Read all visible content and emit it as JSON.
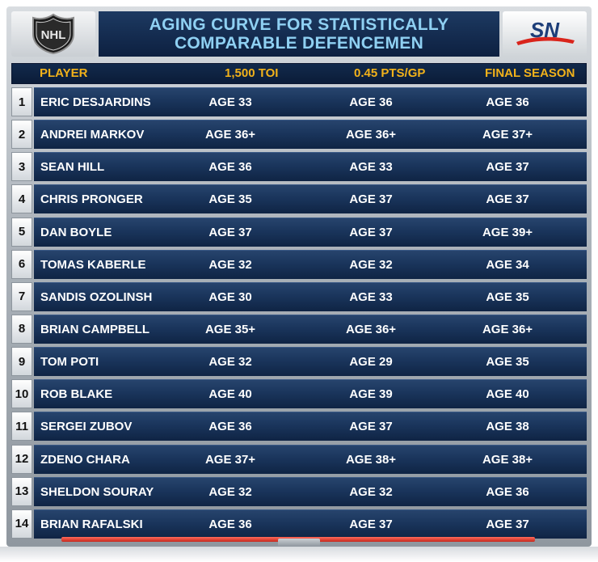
{
  "header": {
    "title_line1": "AGING CURVE FOR STATISTICALLY",
    "title_line2": "COMPARABLE DEFENCEMEN",
    "left_logo": "NHL",
    "right_logo": "SN"
  },
  "columns": [
    "PLAYER",
    "1,500 TOI",
    "0.45 PTS/GP",
    "FINAL SEASON"
  ],
  "rows": [
    {
      "rank": "1",
      "player": "ERIC DESJARDINS",
      "toi": "AGE 33",
      "ptsgp": "AGE 36",
      "final": "AGE 36"
    },
    {
      "rank": "2",
      "player": "ANDREI MARKOV",
      "toi": "AGE 36+",
      "ptsgp": "AGE 36+",
      "final": "AGE 37+"
    },
    {
      "rank": "3",
      "player": "SEAN HILL",
      "toi": "AGE 36",
      "ptsgp": "AGE 33",
      "final": "AGE 37"
    },
    {
      "rank": "4",
      "player": "CHRIS PRONGER",
      "toi": "AGE 35",
      "ptsgp": "AGE 37",
      "final": "AGE 37"
    },
    {
      "rank": "5",
      "player": "DAN BOYLE",
      "toi": "AGE 37",
      "ptsgp": "AGE 37",
      "final": "AGE 39+"
    },
    {
      "rank": "6",
      "player": "TOMAS KABERLE",
      "toi": "AGE 32",
      "ptsgp": "AGE 32",
      "final": "AGE 34"
    },
    {
      "rank": "7",
      "player": "SANDIS OZOLINSH",
      "toi": "AGE 30",
      "ptsgp": "AGE 33",
      "final": "AGE 35"
    },
    {
      "rank": "8",
      "player": "BRIAN CAMPBELL",
      "toi": "AGE 35+",
      "ptsgp": "AGE 36+",
      "final": "AGE 36+"
    },
    {
      "rank": "9",
      "player": "TOM POTI",
      "toi": "AGE 32",
      "ptsgp": "AGE 29",
      "final": "AGE 35"
    },
    {
      "rank": "10",
      "player": "ROB BLAKE",
      "toi": "AGE 40",
      "ptsgp": "AGE 39",
      "final": "AGE 40"
    },
    {
      "rank": "11",
      "player": "SERGEI ZUBOV",
      "toi": "AGE 36",
      "ptsgp": "AGE 37",
      "final": "AGE 38"
    },
    {
      "rank": "12",
      "player": "ZDENO CHARA",
      "toi": "AGE 37+",
      "ptsgp": "AGE 38+",
      "final": "AGE 38+"
    },
    {
      "rank": "13",
      "player": "SHELDON SOURAY",
      "toi": "AGE 32",
      "ptsgp": "AGE 32",
      "final": "AGE 36"
    },
    {
      "rank": "14",
      "player": "BRIAN RAFALSKI",
      "toi": "AGE 36",
      "ptsgp": "AGE 37",
      "final": "AGE 37"
    }
  ],
  "colors": {
    "header_text": "#8fd0f2",
    "column_header_text": "#f2b21a",
    "row_background": "#1a355c",
    "accent_red": "#d9241b"
  }
}
